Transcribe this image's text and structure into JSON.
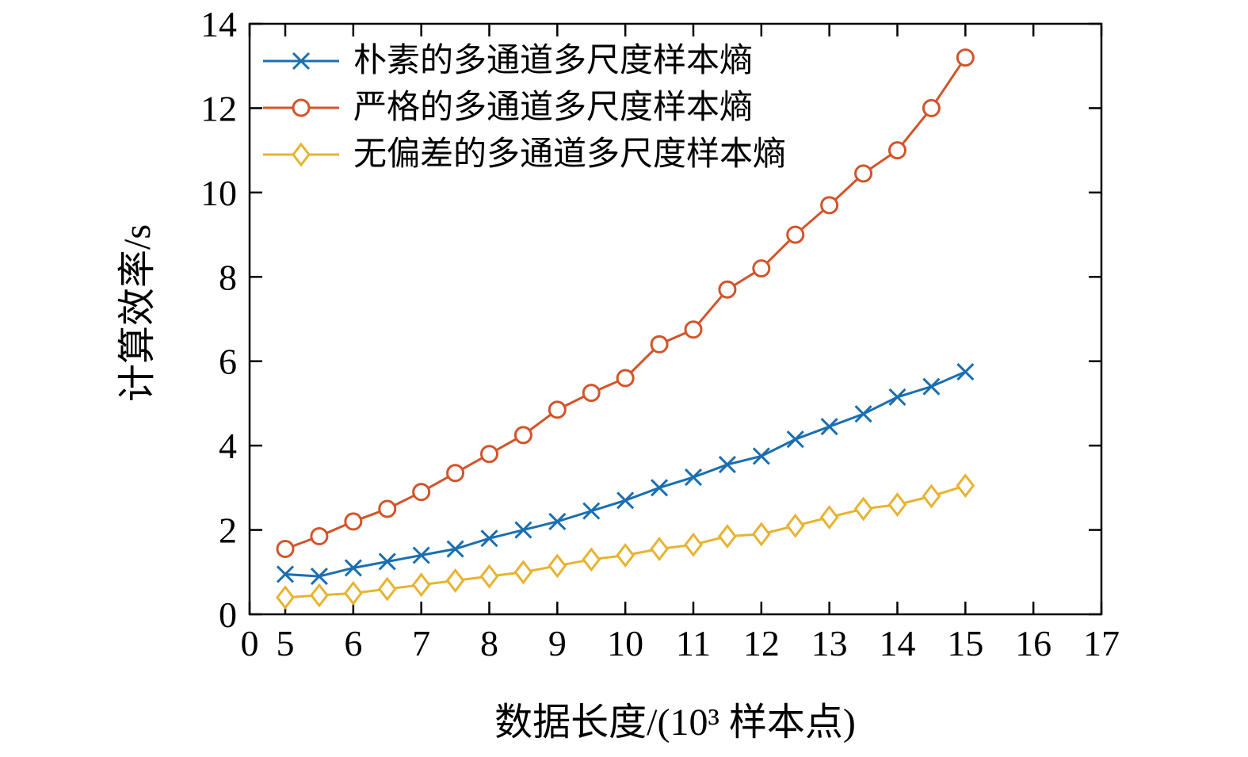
{
  "chart_data": {
    "type": "line",
    "title": "",
    "xlabel": "数据长度/(10³ 样本点)",
    "ylabel": "计算效率/s",
    "x": [
      5,
      5.5,
      6,
      6.5,
      7,
      7.5,
      8,
      8.5,
      9,
      9.5,
      10,
      10.5,
      11,
      11.5,
      12,
      12.5,
      13,
      13.5,
      14,
      14.5,
      15
    ],
    "series": [
      {
        "name": "朴素的多通道多尺度样本熵",
        "color": "#1a6fb0",
        "marker": "x",
        "values": [
          0.95,
          0.9,
          1.1,
          1.25,
          1.4,
          1.55,
          1.8,
          2.0,
          2.2,
          2.45,
          2.7,
          3.0,
          3.25,
          3.55,
          3.75,
          4.15,
          4.45,
          4.75,
          5.15,
          5.4,
          5.75
        ]
      },
      {
        "name": "严格的多通道多尺度样本熵",
        "color": "#d2542a",
        "marker": "circle",
        "values": [
          1.55,
          1.85,
          2.2,
          2.5,
          2.9,
          3.35,
          3.8,
          4.25,
          4.85,
          5.25,
          5.6,
          6.4,
          6.75,
          7.7,
          8.2,
          9.0,
          9.7,
          10.45,
          11.0,
          12.0,
          13.2
        ]
      },
      {
        "name": "无偏差的多通道多尺度样本熵",
        "color": "#e8b330",
        "marker": "diamond",
        "values": [
          0.4,
          0.45,
          0.5,
          0.6,
          0.7,
          0.8,
          0.9,
          1.0,
          1.15,
          1.3,
          1.4,
          1.55,
          1.65,
          1.85,
          1.9,
          2.1,
          2.3,
          2.5,
          2.6,
          2.8,
          3.05
        ]
      }
    ],
    "x_ticks": [
      0,
      5,
      6,
      7,
      8,
      9,
      10,
      11,
      12,
      13,
      14,
      15,
      16,
      17
    ],
    "y_ticks": [
      0,
      2,
      4,
      6,
      8,
      10,
      12,
      14
    ],
    "ylim": [
      0,
      14
    ],
    "legend_position": "top-left",
    "grid": false,
    "axis_color": "#000000"
  }
}
